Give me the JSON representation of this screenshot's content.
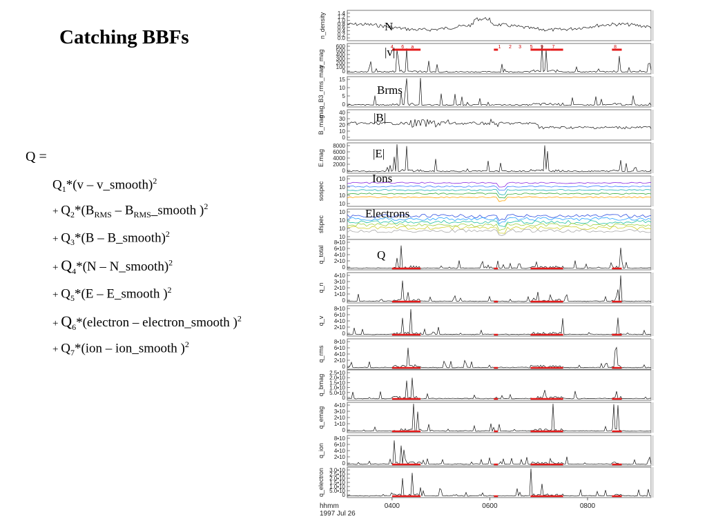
{
  "slide": {
    "title": "Catching BBFs",
    "q_equals": "Q =",
    "formulas": [
      {
        "prefix": "",
        "q": "Q",
        "sub": "1",
        "body": "*(v – v_smooth)",
        "sup": "2"
      },
      {
        "prefix": "+",
        "q": "Q",
        "sub": "2",
        "body": "*(B",
        "sub2": "RMS",
        "body2": " – B",
        "sub3": "RMS",
        "body3": "_smooth )",
        "sup": "2"
      },
      {
        "prefix": "+",
        "q": "Q",
        "sub": "3",
        "body": "*(B – B_smooth)",
        "sup": "2"
      },
      {
        "prefix": "+",
        "q": "Q",
        "sub": "4",
        "body": "*(N – N_smooth)",
        "sup": "2"
      },
      {
        "prefix": "+",
        "q": "Q",
        "sub": "5",
        "body": "*(E – E_smooth )",
        "sup": "2"
      },
      {
        "prefix": "+",
        "q": "Q",
        "sub": "6",
        "body": "*(electron – electron_smooth )",
        "sup": "2"
      },
      {
        "prefix": "+",
        "q": "Q",
        "sub": "7",
        "body": "*(ion – ion_smooth )",
        "sup": "2"
      }
    ]
  },
  "chart_data": {
    "type": "line",
    "x_axis": {
      "title": "hhmm",
      "date": "1997 Jul 26",
      "ticks": [
        "0400",
        "0600",
        "0800"
      ]
    },
    "panels": [
      {
        "ylabel": "n_density",
        "overlay": "N",
        "ticks": [
          "1.4",
          "1.2",
          "1.0",
          "0.8",
          "0.6",
          "0.4",
          "0.2",
          "0.0"
        ]
      },
      {
        "ylabel": "v_mag",
        "overlay": "|v|",
        "ticks": [
          "600",
          "500",
          "400",
          "300",
          "200",
          "100",
          "0"
        ],
        "event_labels": [
          "4",
          "6",
          "a",
          "1",
          "2",
          "3",
          "5",
          "9",
          "7",
          "8"
        ]
      },
      {
        "ylabel": "mag_B3_rms_mag",
        "overlay": "Brms",
        "ticks": [
          "15",
          "10",
          "5",
          "0"
        ]
      },
      {
        "ylabel": "B_mag",
        "overlay": "|B|",
        "ticks": [
          "40",
          "30",
          "20",
          "10",
          "0"
        ]
      },
      {
        "ylabel": "E.mag",
        "overlay": "|E|",
        "ticks": [
          "8000",
          "6000",
          "4000",
          "2000",
          "0"
        ]
      },
      {
        "ylabel": "sospec",
        "overlay": "Ions",
        "ticks": [
          "10",
          "10",
          "10",
          "10"
        ]
      },
      {
        "ylabel": "sfspec",
        "overlay": "Electrons",
        "ticks": [
          "10",
          "10",
          "10",
          "10"
        ]
      },
      {
        "ylabel": "q_total",
        "overlay": "Q",
        "ticks": [
          "8•10",
          "6•10",
          "4•10",
          "2•10",
          "0"
        ]
      },
      {
        "ylabel": "q_n",
        "overlay": "",
        "ticks": [
          "4•10",
          "3•10",
          "2•10",
          "1•10",
          "0"
        ]
      },
      {
        "ylabel": "q_v",
        "overlay": "",
        "ticks": [
          "8•10",
          "6•10",
          "4•10",
          "2•10",
          "0"
        ]
      },
      {
        "ylabel": "q_rms",
        "overlay": "",
        "ticks": [
          "8•10",
          "6•10",
          "4•10",
          "2•10",
          "0"
        ]
      },
      {
        "ylabel": "q_bmag",
        "overlay": "",
        "ticks": [
          "2.5•10",
          "2.0•10",
          "1.5•10",
          "1.0•10",
          "5.0•10",
          "0"
        ]
      },
      {
        "ylabel": "q_emag",
        "overlay": "",
        "ticks": [
          "4•10",
          "3•10",
          "2•10",
          "1•10",
          "0"
        ]
      },
      {
        "ylabel": "q_ion",
        "overlay": "",
        "ticks": [
          "8•10",
          "6•10",
          "4•10",
          "2•10",
          "0"
        ]
      },
      {
        "ylabel": "q_electron",
        "overlay": "",
        "ticks": [
          "3.0•10",
          "2.5•10",
          "2.0•10",
          "1.5•10",
          "1.0•10",
          "5.0•10",
          "0"
        ]
      }
    ],
    "event_spans_hhmm": [
      [
        400,
        435
      ],
      [
        570,
        605
      ],
      [
        650,
        675
      ],
      [
        715,
        730
      ],
      [
        830,
        842
      ]
    ],
    "colors": {
      "trace": "#111111",
      "event": "#e41b1b",
      "frame": "#555555",
      "ion_lines": [
        "#8a2be2",
        "#3a7dff",
        "#21b3b3",
        "#33aa33",
        "#ffa500"
      ],
      "electron_lines": [
        "#3050e0",
        "#20a0ff",
        "#20c0a0",
        "#a0d040",
        "#d0d030",
        "#aaaaaa"
      ]
    }
  }
}
